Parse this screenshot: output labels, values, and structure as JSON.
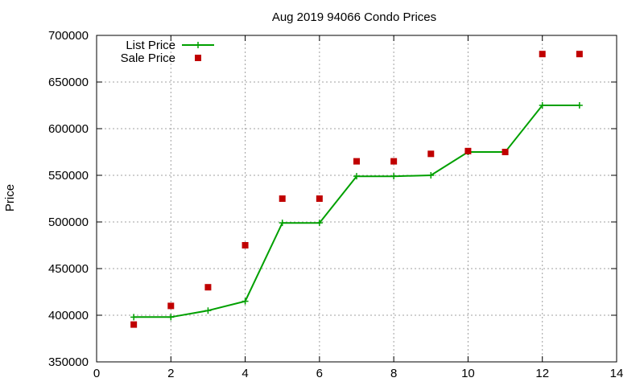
{
  "chart_data": {
    "type": "line",
    "title": "Aug 2019 94066 Condo Prices",
    "xlabel": "",
    "ylabel": "Price",
    "xlim": [
      0,
      14
    ],
    "ylim": [
      350000,
      700000
    ],
    "x_ticks": [
      0,
      2,
      4,
      6,
      8,
      10,
      12,
      14
    ],
    "y_ticks": [
      350000,
      400000,
      450000,
      500000,
      550000,
      600000,
      650000,
      700000
    ],
    "grid": true,
    "legend_position": "top-left",
    "series": [
      {
        "name": "List Price",
        "style": "lines+points",
        "marker": "plus",
        "color": "#00a000",
        "points": [
          {
            "x": 1,
            "y": 398000
          },
          {
            "x": 2,
            "y": 398000
          },
          {
            "x": 3,
            "y": 405000
          },
          {
            "x": 4,
            "y": 415000
          },
          {
            "x": 5,
            "y": 499000
          },
          {
            "x": 6,
            "y": 499000
          },
          {
            "x": 7,
            "y": 549000
          },
          {
            "x": 8,
            "y": 549000
          },
          {
            "x": 9,
            "y": 550000
          },
          {
            "x": 10,
            "y": 575000
          },
          {
            "x": 11,
            "y": 575000
          },
          {
            "x": 12,
            "y": 625000
          },
          {
            "x": 13,
            "y": 625000
          }
        ]
      },
      {
        "name": "Sale Price",
        "style": "points",
        "marker": "square",
        "color": "#c00000",
        "points": [
          {
            "x": 1,
            "y": 390000
          },
          {
            "x": 2,
            "y": 410000
          },
          {
            "x": 3,
            "y": 430000
          },
          {
            "x": 4,
            "y": 475000
          },
          {
            "x": 5,
            "y": 525000
          },
          {
            "x": 6,
            "y": 525000
          },
          {
            "x": 7,
            "y": 565000
          },
          {
            "x": 8,
            "y": 565000
          },
          {
            "x": 9,
            "y": 573000
          },
          {
            "x": 10,
            "y": 576000
          },
          {
            "x": 11,
            "y": 575000
          },
          {
            "x": 12,
            "y": 680000
          },
          {
            "x": 13,
            "y": 680000
          }
        ]
      }
    ]
  }
}
